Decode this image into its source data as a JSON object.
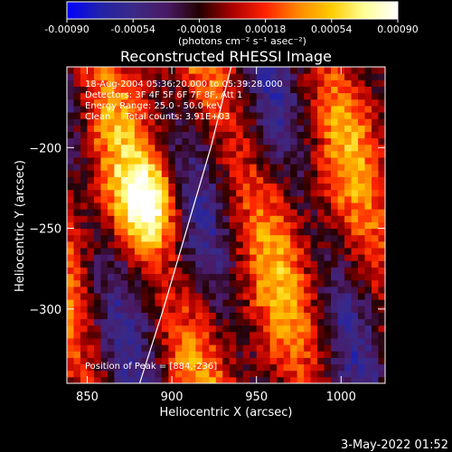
{
  "chart_data": {
    "type": "heatmap",
    "title": "Reconstructed RHESSI Image",
    "xlabel": "Heliocentric X (arcsec)",
    "ylabel": "Heliocentric Y (arcsec)",
    "xlim": [
      838,
      1026
    ],
    "ylim": [
      -346,
      -150
    ],
    "x_ticks": [
      850,
      900,
      950,
      1000
    ],
    "y_ticks": [
      -200,
      -250,
      -300
    ],
    "colorbar": {
      "range": [
        -0.0009,
        0.0009
      ],
      "ticks": [
        "-0.00090",
        "-0.00054",
        "-0.00018",
        "0.00018",
        "0.00054",
        "0.00090"
      ],
      "unit_label": "(photons cm⁻² s⁻¹ asec⁻²)",
      "colors": [
        "#0000ff",
        "#2222aa",
        "#3a2a86",
        "#4a1a66",
        "#220000",
        "#aa0000",
        "#ff2200",
        "#ff8800",
        "#ffcc00",
        "#ffff99",
        "#ffffff"
      ]
    },
    "annotations": [
      "18-Aug-2004 05:36:20.000 to 05:39:28.000",
      "Detectors: 3F 4F 5F 6F 7F 8F, Att 1",
      "Energy Range: 25.0 - 50.0 keV",
      "Clean     Total counts: 3.91E+03"
    ],
    "peak_label": "Position of Peak = [884,-236]",
    "peak": [
      884,
      -236
    ],
    "limb_curve": [
      [
        881,
        -346
      ],
      [
        895,
        -300
      ],
      [
        909,
        -250
      ],
      [
        923,
        -200
      ],
      [
        935,
        -150
      ]
    ]
  },
  "footer": {
    "date": "3-May-2022 01:52"
  }
}
